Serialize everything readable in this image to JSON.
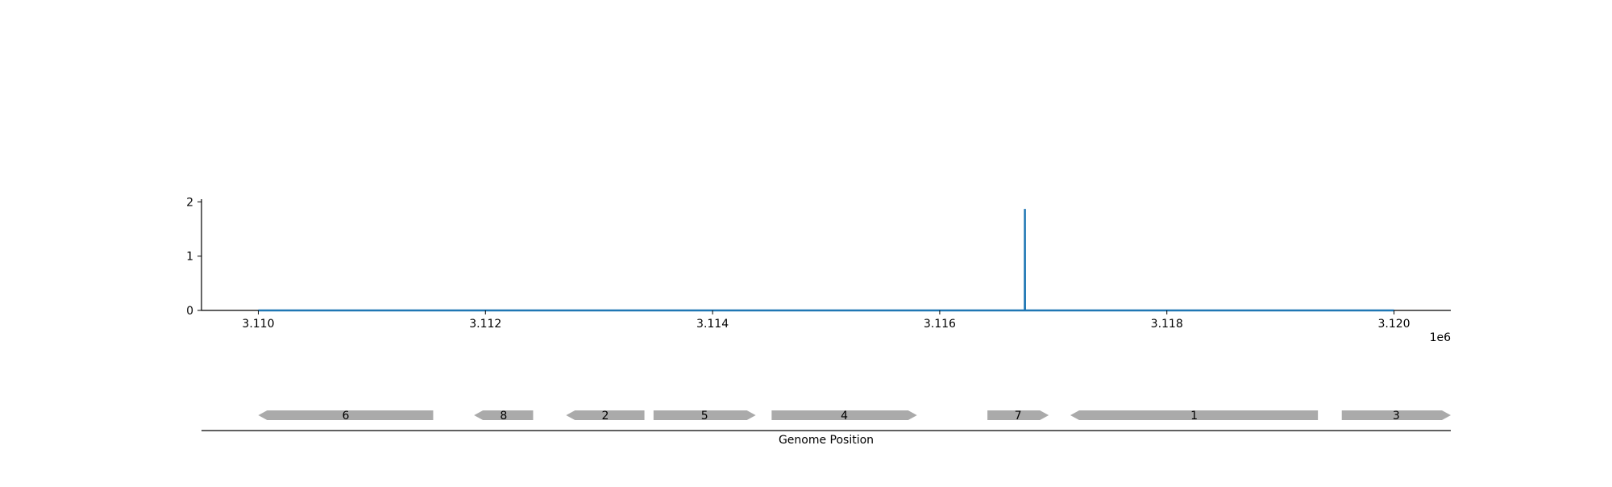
{
  "chart_data": [
    {
      "type": "line",
      "title": "",
      "xlabel": "",
      "ylabel": "",
      "x_offset_label": "1e6",
      "xlim": [
        3109500,
        3120500
      ],
      "ylim": [
        0,
        2.05
      ],
      "xticks": [
        3110000,
        3112000,
        3114000,
        3116000,
        3118000,
        3120000
      ],
      "xtick_labels": [
        "3.110",
        "3.112",
        "3.114",
        "3.116",
        "3.118",
        "3.120"
      ],
      "yticks": [
        0,
        1,
        2
      ],
      "ytick_labels": [
        "0",
        "1",
        "2"
      ],
      "line_color": "#1f77b4",
      "series": [
        {
          "x": [
            3110000,
            3116749,
            3116750,
            3116751,
            3120000
          ],
          "y": [
            0,
            0,
            1.87,
            0,
            0
          ]
        }
      ]
    },
    {
      "type": "gene-track",
      "xlabel": "Genome Position",
      "xlim": [
        3109500,
        3120500
      ],
      "gene_color": "#aaaaaa",
      "genes": [
        {
          "label": "6",
          "start": 3110000,
          "end": 3111540,
          "strand": -1
        },
        {
          "label": "8",
          "start": 3111900,
          "end": 3112420,
          "strand": -1
        },
        {
          "label": "2",
          "start": 3112710,
          "end": 3113400,
          "strand": -1
        },
        {
          "label": "5",
          "start": 3113480,
          "end": 3114380,
          "strand": 1
        },
        {
          "label": "4",
          "start": 3114520,
          "end": 3115800,
          "strand": 1
        },
        {
          "label": "7",
          "start": 3116420,
          "end": 3116960,
          "strand": 1
        },
        {
          "label": "1",
          "start": 3117150,
          "end": 3119330,
          "strand": -1
        },
        {
          "label": "3",
          "start": 3119540,
          "end": 3120500,
          "strand": 1
        }
      ]
    }
  ]
}
